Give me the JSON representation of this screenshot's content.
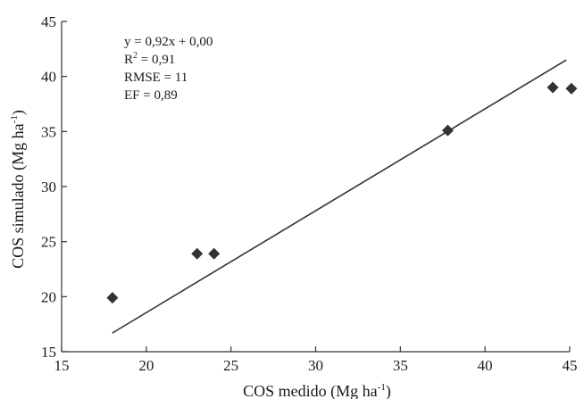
{
  "chart_data": {
    "type": "scatter",
    "title": "",
    "xlabel": {
      "main": "COS medido (Mg ha",
      "sup": "-1",
      "end": ")"
    },
    "ylabel": {
      "main": "COS simulado (Mg ha",
      "sup": "-1",
      "end": ")"
    },
    "xlim": [
      15,
      45
    ],
    "ylim": [
      15,
      45
    ],
    "x_ticks": [
      15,
      20,
      25,
      30,
      35,
      40,
      45
    ],
    "y_ticks": [
      15,
      20,
      25,
      30,
      35,
      40,
      45
    ],
    "grid": false,
    "series": [
      {
        "marker": "diamond",
        "color": "#333333",
        "points": [
          {
            "x": 18.0,
            "y": 19.9
          },
          {
            "x": 23.0,
            "y": 23.9
          },
          {
            "x": 24.0,
            "y": 23.9
          },
          {
            "x": 37.8,
            "y": 35.1
          },
          {
            "x": 44.0,
            "y": 39.0
          },
          {
            "x": 45.1,
            "y": 38.9
          }
        ]
      }
    ],
    "fit_line": {
      "color": "#333333",
      "points": [
        {
          "x": 18.0,
          "y": 16.7
        },
        {
          "x": 44.8,
          "y": 41.5
        }
      ]
    },
    "annotations": {
      "equation": "y = 0,92x + 0,00",
      "r2_label": "R",
      "r2_sup": "2",
      "r2_value": " = 0,91",
      "rmse": "RMSE = 11",
      "ef": "EF = 0,89"
    }
  }
}
